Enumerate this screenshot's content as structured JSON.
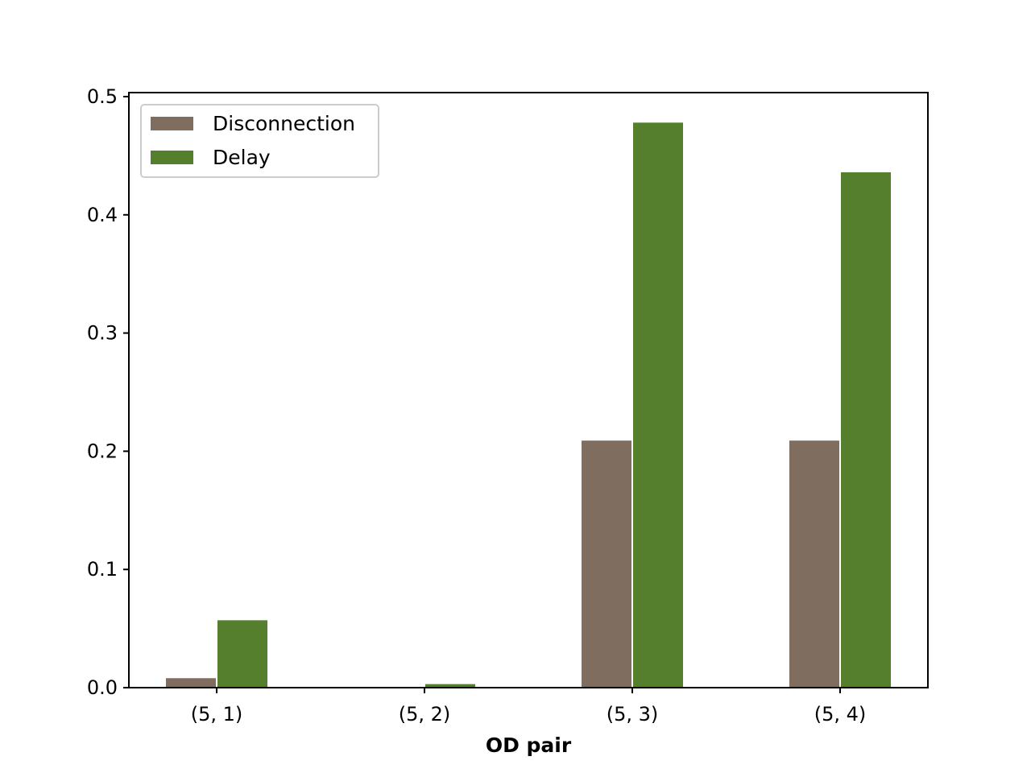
{
  "chart_data": {
    "type": "bar",
    "title": "",
    "xlabel": "OD pair",
    "ylabel": "",
    "categories": [
      "(5, 1)",
      "(5, 2)",
      "(5, 3)",
      "(5, 4)"
    ],
    "series": [
      {
        "name": "Disconnection",
        "color": "#7f6d5f",
        "values": [
          0.008,
          0.0,
          0.209,
          0.209
        ]
      },
      {
        "name": "Delay",
        "color": "#557f2d",
        "values": [
          0.057,
          0.003,
          0.478,
          0.436
        ]
      }
    ],
    "ylim": [
      0.0,
      0.5
    ],
    "yticks": [
      "0.0",
      "0.1",
      "0.2",
      "0.3",
      "0.4",
      "0.5"
    ],
    "grid": false,
    "legend_position": "top-left"
  }
}
